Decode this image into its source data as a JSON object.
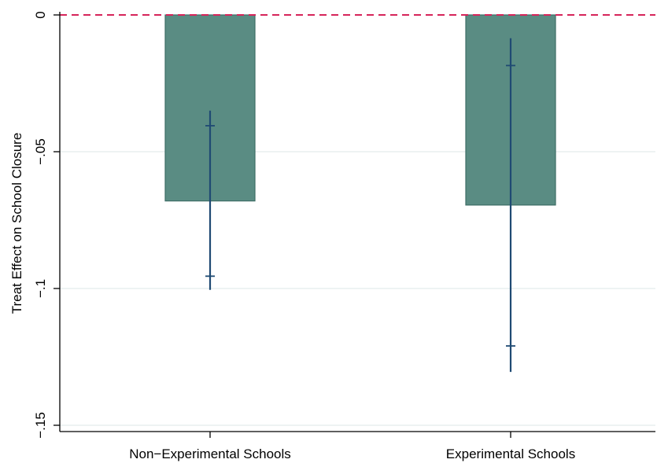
{
  "chart_data": {
    "type": "bar",
    "title": "",
    "xlabel": "",
    "ylabel": "Treat Effect on School Closure",
    "categories": [
      "Non−Experimental Schools",
      "Experimental Schools"
    ],
    "values": [
      -0.068,
      -0.0695
    ],
    "ci_outer": [
      [
        -0.1005,
        -0.035
      ],
      [
        -0.1305,
        -0.0085
      ]
    ],
    "ci_inner": [
      [
        -0.0955,
        -0.0405
      ],
      [
        -0.121,
        -0.0185
      ]
    ],
    "yticks": [
      0,
      -0.05,
      -0.1,
      -0.15
    ],
    "ytick_labels": [
      "0",
      "−.05",
      "−.1",
      "−.15"
    ],
    "ylim": [
      -0.155,
      0.0
    ],
    "reference_line": 0,
    "grid": true,
    "colors": {
      "bar_fill": "#5a8c83",
      "bar_stroke": "#3e6d66",
      "error_bar": "#1f4a73",
      "reference_line": "#d6245a",
      "grid": "#e3ecec",
      "axis": "#000000"
    }
  }
}
